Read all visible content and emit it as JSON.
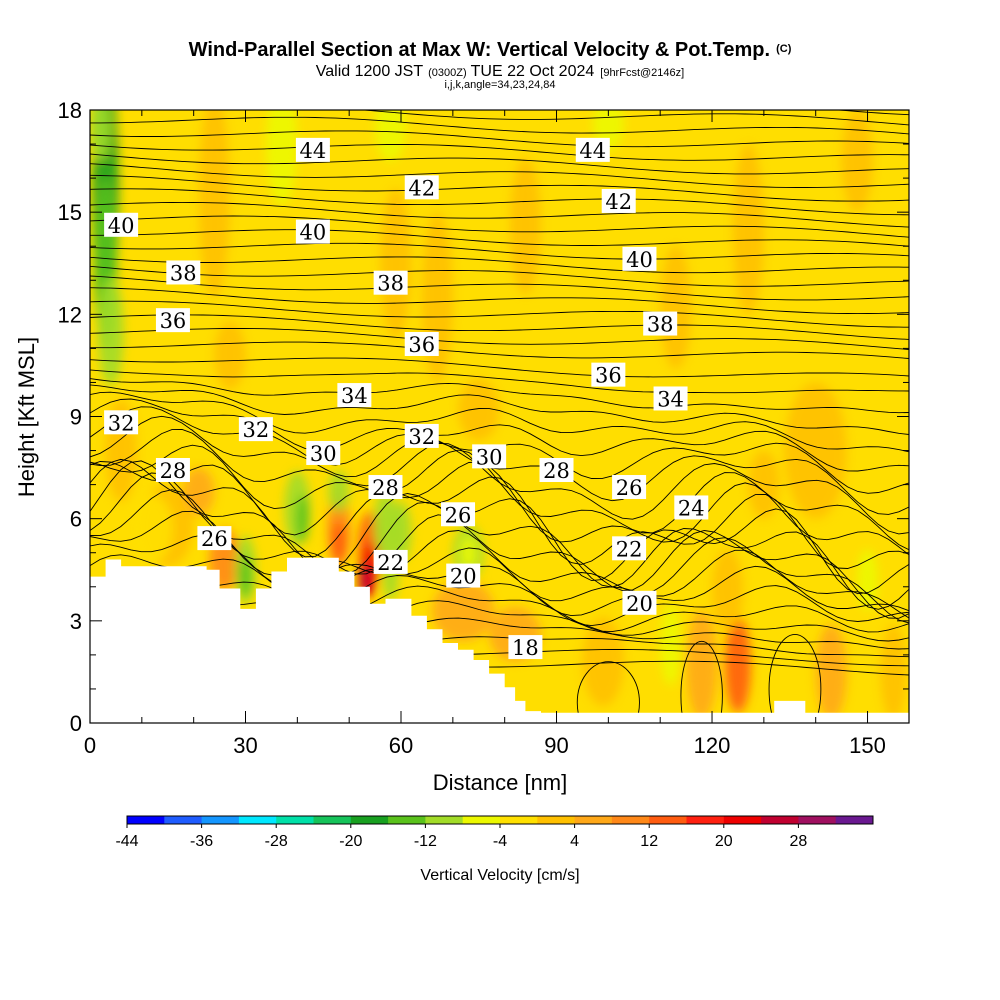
{
  "title": {
    "main": "Wind-Parallel Section at Max W: Vertical Velocity & Pot.Temp.",
    "copyright": "(C)",
    "valid_prefix": "Valid 1200 JST",
    "valid_utc": "(0300Z)",
    "valid_date": "TUE 22 Oct 2024",
    "forecast": "[9hrFcst@2146z]",
    "section_info": "i,j,k,angle=34,23,24,84"
  },
  "chart_data": {
    "type": "heatmap",
    "xlabel": "Distance [nm]",
    "ylabel": "Height [Kft MSL]",
    "xlim": [
      0,
      158
    ],
    "ylim": [
      0,
      18
    ],
    "x_ticks": [
      0,
      30,
      60,
      90,
      120,
      150
    ],
    "y_ticks": [
      0,
      3,
      6,
      9,
      12,
      15,
      18
    ],
    "grid": false,
    "background_field": "Vertical Velocity [cm/s]",
    "colorbar": {
      "label": "Vertical Velocity [cm/s]",
      "placement": "bottom",
      "tick_labels": [
        "-44",
        "-36",
        "-28",
        "-20",
        "-12",
        "-4",
        "4",
        "12",
        "20",
        "28"
      ],
      "colors": [
        "#0000ff",
        "#1f5cff",
        "#1496ff",
        "#00e8ff",
        "#00e0a8",
        "#16c35a",
        "#18a020",
        "#5ac21c",
        "#a2dc28",
        "#ecf800",
        "#ffe000",
        "#ffc000",
        "#ffa818",
        "#ff8818",
        "#ff5c10",
        "#ff2010",
        "#ee0000",
        "#c00030",
        "#a01060",
        "#6a1890"
      ]
    },
    "contour_field": "Potential Temperature",
    "contour_labels": [
      {
        "text": "44",
        "x": 43,
        "y": 16.8
      },
      {
        "text": "44",
        "x": 97,
        "y": 16.8
      },
      {
        "text": "42",
        "x": 64,
        "y": 15.7
      },
      {
        "text": "42",
        "x": 102,
        "y": 15.3
      },
      {
        "text": "40",
        "x": 6,
        "y": 14.6
      },
      {
        "text": "40",
        "x": 43,
        "y": 14.4
      },
      {
        "text": "40",
        "x": 106,
        "y": 13.6
      },
      {
        "text": "38",
        "x": 18,
        "y": 13.2
      },
      {
        "text": "38",
        "x": 58,
        "y": 12.9
      },
      {
        "text": "38",
        "x": 110,
        "y": 11.7
      },
      {
        "text": "36",
        "x": 16,
        "y": 11.8
      },
      {
        "text": "36",
        "x": 64,
        "y": 11.1
      },
      {
        "text": "36",
        "x": 100,
        "y": 10.2
      },
      {
        "text": "34",
        "x": 51,
        "y": 9.6
      },
      {
        "text": "34",
        "x": 112,
        "y": 9.5
      },
      {
        "text": "32",
        "x": 6,
        "y": 8.8
      },
      {
        "text": "32",
        "x": 32,
        "y": 8.6
      },
      {
        "text": "32",
        "x": 64,
        "y": 8.4
      },
      {
        "text": "30",
        "x": 45,
        "y": 7.9
      },
      {
        "text": "30",
        "x": 77,
        "y": 7.8
      },
      {
        "text": "28",
        "x": 16,
        "y": 7.4
      },
      {
        "text": "28",
        "x": 57,
        "y": 6.9
      },
      {
        "text": "28",
        "x": 90,
        "y": 7.4
      },
      {
        "text": "26",
        "x": 24,
        "y": 5.4
      },
      {
        "text": "26",
        "x": 71,
        "y": 6.1
      },
      {
        "text": "26",
        "x": 104,
        "y": 6.9
      },
      {
        "text": "24",
        "x": 116,
        "y": 6.3
      },
      {
        "text": "22",
        "x": 58,
        "y": 4.7
      },
      {
        "text": "22",
        "x": 104,
        "y": 5.1
      },
      {
        "text": "20",
        "x": 72,
        "y": 4.3
      },
      {
        "text": "20",
        "x": 106,
        "y": 3.5
      },
      {
        "text": "18",
        "x": 84,
        "y": 2.2
      }
    ],
    "terrain_profile": {
      "x": [
        0,
        3,
        3,
        6,
        6,
        22.5,
        22.5,
        25,
        25,
        29,
        29,
        32,
        32,
        35,
        35,
        38,
        38,
        48,
        48,
        51,
        51,
        54,
        54,
        57,
        57,
        62,
        62,
        65,
        65,
        68,
        68,
        71,
        71,
        74,
        74,
        77,
        77,
        80,
        80,
        82,
        82,
        84,
        84,
        87,
        87,
        120,
        120,
        132,
        132,
        138,
        138,
        158
      ],
      "y": [
        4.3,
        4.3,
        4.8,
        4.8,
        4.6,
        4.6,
        4.5,
        4.5,
        3.95,
        3.95,
        3.35,
        3.35,
        3.95,
        3.95,
        4.45,
        4.45,
        4.85,
        4.85,
        4.45,
        4.45,
        4.0,
        4.0,
        3.5,
        3.5,
        3.65,
        3.65,
        3.15,
        3.15,
        2.75,
        2.75,
        2.35,
        2.35,
        2.15,
        2.15,
        1.85,
        1.85,
        1.45,
        1.45,
        1.05,
        1.05,
        0.65,
        0.65,
        0.35,
        0.35,
        0.3,
        0.3,
        0.3,
        0.3,
        0.65,
        0.65,
        0.3,
        0.3
      ]
    }
  }
}
